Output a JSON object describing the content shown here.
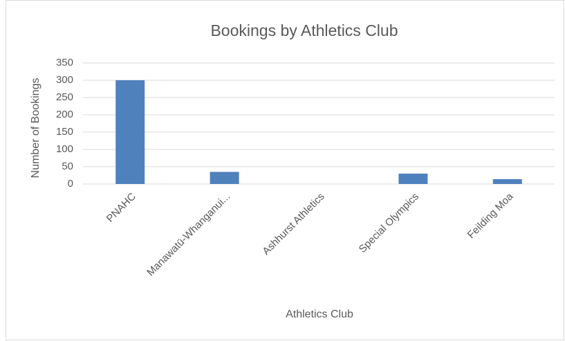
{
  "chart_data": {
    "type": "bar",
    "title": "Bookings by Athletics Club",
    "x_label": "Athletics Club",
    "y_label": "Number of Bookings",
    "categories": [
      "PNAHC",
      "Manawatū-Whanganui...",
      "Ashhurst Athletics",
      "Special Olympics",
      "Feilding Moa"
    ],
    "values": [
      300,
      35,
      0,
      30,
      14
    ],
    "color": "#4f81bd",
    "ylim": [
      0,
      350
    ],
    "yticks": [
      0,
      50,
      100,
      150,
      200,
      250,
      300,
      350
    ],
    "grid": true
  }
}
